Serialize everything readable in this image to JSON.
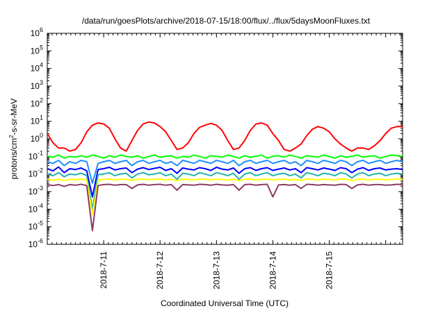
{
  "chart_data": {
    "type": "line",
    "title": "/data/run/goesPlots/archive/2018-07-15/18:00/flux/../flux/5daysMoonFluxes.txt",
    "xlabel": "Coordinated Universal Time (UTC)",
    "ylabel": {
      "prefix": "protons/cm",
      "superscript": "2",
      "suffix": "-s-sr-MeV"
    },
    "yscale": "log",
    "ylim": [
      1e-06,
      1000000.0
    ],
    "y_ticks": [
      {
        "base": "10",
        "exp": "-6",
        "value": -6
      },
      {
        "base": "10",
        "exp": "-5",
        "value": -5
      },
      {
        "base": "10",
        "exp": "-4",
        "value": -4
      },
      {
        "base": "10",
        "exp": "-3",
        "value": -3
      },
      {
        "base": "10",
        "exp": "-2",
        "value": -2
      },
      {
        "base": "10",
        "exp": "-1",
        "value": -1
      },
      {
        "base": "10",
        "exp": "0",
        "value": 0
      },
      {
        "base": "10",
        "exp": "1",
        "value": 1
      },
      {
        "base": "10",
        "exp": "2",
        "value": 2
      },
      {
        "base": "10",
        "exp": "3",
        "value": 3
      },
      {
        "base": "10",
        "exp": "4",
        "value": 4
      },
      {
        "base": "10",
        "exp": "5",
        "value": 5
      },
      {
        "base": "10",
        "exp": "6",
        "value": 6
      }
    ],
    "xlim_days": [
      0,
      6.3
    ],
    "x_ticks": [
      {
        "label": "2018-7-11",
        "day": 1
      },
      {
        "label": "2018-7-12",
        "day": 2
      },
      {
        "label": "2018-7-13",
        "day": 3
      },
      {
        "label": "2018-7-14",
        "day": 4
      },
      {
        "label": "2018-7-15",
        "day": 5
      }
    ],
    "grid": false,
    "series": [
      {
        "color": "#ff0000",
        "x": [
          0.0,
          0.1,
          0.2,
          0.3,
          0.4,
          0.5,
          0.6,
          0.7,
          0.8,
          0.9,
          1.0,
          1.1,
          1.2,
          1.3,
          1.4,
          1.5,
          1.6,
          1.7,
          1.8,
          1.9,
          2.0,
          2.1,
          2.2,
          2.3,
          2.4,
          2.5,
          2.6,
          2.7,
          2.8,
          2.9,
          3.0,
          3.1,
          3.2,
          3.3,
          3.4,
          3.5,
          3.6,
          3.7,
          3.8,
          3.9,
          4.0,
          4.1,
          4.2,
          4.3,
          4.4,
          4.5,
          4.6,
          4.7,
          4.8,
          4.9,
          5.0,
          5.1,
          5.2,
          5.3,
          5.4,
          5.5,
          5.6,
          5.7,
          5.8,
          5.9,
          6.0,
          6.1,
          6.2,
          6.3
        ],
        "y": [
          2.0,
          0.6,
          0.3,
          0.3,
          0.2,
          0.25,
          0.6,
          2.5,
          6.0,
          8.0,
          7.0,
          4.0,
          1.0,
          0.3,
          0.2,
          0.8,
          3.0,
          7.0,
          9.0,
          8.0,
          5.0,
          2.5,
          0.8,
          0.25,
          0.3,
          0.6,
          2.0,
          4.5,
          6.0,
          7.5,
          6.0,
          3.0,
          0.8,
          0.25,
          0.3,
          0.8,
          3.0,
          7.0,
          8.0,
          6.0,
          2.0,
          0.8,
          0.25,
          0.2,
          0.3,
          0.5,
          1.5,
          3.5,
          5.0,
          4.0,
          2.5,
          1.0,
          0.5,
          0.3,
          0.2,
          0.3,
          0.3,
          0.25,
          0.4,
          0.8,
          2.0,
          4.0,
          5.0,
          5.0
        ]
      },
      {
        "color": "#00ff00",
        "x": [
          0.0,
          0.1,
          0.2,
          0.3,
          0.4,
          0.5,
          0.6,
          0.7,
          0.8,
          0.9,
          1.0,
          1.1,
          1.2,
          1.3,
          1.4,
          1.5,
          1.6,
          1.7,
          1.8,
          1.9,
          2.0,
          2.1,
          2.2,
          2.3,
          2.4,
          2.5,
          2.6,
          2.7,
          2.8,
          2.9,
          3.0,
          3.1,
          3.2,
          3.3,
          3.4,
          3.5,
          3.6,
          3.7,
          3.8,
          3.9,
          4.0,
          4.1,
          4.2,
          4.3,
          4.4,
          4.5,
          4.6,
          4.7,
          4.8,
          4.9,
          5.0,
          5.1,
          5.2,
          5.3,
          5.4,
          5.5,
          5.6,
          5.7,
          5.8,
          5.9,
          6.0,
          6.1,
          6.2,
          6.3
        ],
        "y": [
          0.1,
          0.09,
          0.12,
          0.08,
          0.1,
          0.09,
          0.11,
          0.09,
          0.12,
          0.1,
          0.08,
          0.11,
          0.09,
          0.12,
          0.1,
          0.09,
          0.11,
          0.08,
          0.1,
          0.12,
          0.09,
          0.1,
          0.11,
          0.08,
          0.1,
          0.09,
          0.12,
          0.1,
          0.08,
          0.11,
          0.1,
          0.09,
          0.12,
          0.1,
          0.08,
          0.11,
          0.09,
          0.1,
          0.12,
          0.08,
          0.1,
          0.11,
          0.09,
          0.12,
          0.1,
          0.08,
          0.11,
          0.1,
          0.09,
          0.12,
          0.1,
          0.08,
          0.11,
          0.09,
          0.1,
          0.12,
          0.09,
          0.1,
          0.11,
          0.08,
          0.1,
          0.12,
          0.11,
          0.1
        ]
      },
      {
        "color": "#1e90ff",
        "x": [
          0.0,
          0.1,
          0.2,
          0.3,
          0.4,
          0.5,
          0.6,
          0.7,
          0.8,
          0.9,
          1.0,
          1.1,
          1.2,
          1.3,
          1.4,
          1.5,
          1.6,
          1.7,
          1.8,
          1.9,
          2.0,
          2.1,
          2.2,
          2.3,
          2.4,
          2.5,
          2.6,
          2.7,
          2.8,
          2.9,
          3.0,
          3.1,
          3.2,
          3.3,
          3.4,
          3.5,
          3.6,
          3.7,
          3.8,
          3.9,
          4.0,
          4.1,
          4.2,
          4.3,
          4.4,
          4.5,
          4.6,
          4.7,
          4.8,
          4.9,
          5.0,
          5.1,
          5.2,
          5.3,
          5.4,
          5.5,
          5.6,
          5.7,
          5.8,
          5.9,
          6.0,
          6.1,
          6.2,
          6.3
        ],
        "y": [
          0.05,
          0.04,
          0.06,
          0.03,
          0.05,
          0.04,
          0.06,
          0.05,
          0.003,
          0.04,
          0.05,
          0.06,
          0.04,
          0.05,
          0.06,
          0.03,
          0.05,
          0.06,
          0.04,
          0.05,
          0.06,
          0.04,
          0.05,
          0.03,
          0.06,
          0.05,
          0.04,
          0.06,
          0.05,
          0.04,
          0.06,
          0.05,
          0.04,
          0.06,
          0.03,
          0.05,
          0.06,
          0.04,
          0.05,
          0.06,
          0.04,
          0.05,
          0.06,
          0.04,
          0.05,
          0.03,
          0.06,
          0.05,
          0.04,
          0.06,
          0.05,
          0.04,
          0.06,
          0.05,
          0.03,
          0.05,
          0.06,
          0.04,
          0.05,
          0.06,
          0.04,
          0.05,
          0.06,
          0.05
        ]
      },
      {
        "color": "#0000ff",
        "x": [
          0.0,
          0.1,
          0.2,
          0.3,
          0.4,
          0.5,
          0.6,
          0.7,
          0.8,
          0.9,
          1.0,
          1.1,
          1.2,
          1.3,
          1.4,
          1.5,
          1.6,
          1.7,
          1.8,
          1.9,
          2.0,
          2.1,
          2.2,
          2.3,
          2.4,
          2.5,
          2.6,
          2.7,
          2.8,
          2.9,
          3.0,
          3.1,
          3.2,
          3.3,
          3.4,
          3.5,
          3.6,
          3.7,
          3.8,
          3.9,
          4.0,
          4.1,
          4.2,
          4.3,
          4.4,
          4.5,
          4.6,
          4.7,
          4.8,
          4.9,
          5.0,
          5.1,
          5.2,
          5.3,
          5.4,
          5.5,
          5.6,
          5.7,
          5.8,
          5.9,
          6.0,
          6.1,
          6.2,
          6.3
        ],
        "y": [
          0.02,
          0.015,
          0.025,
          0.012,
          0.02,
          0.018,
          0.022,
          0.015,
          0.0005,
          0.018,
          0.02,
          0.024,
          0.017,
          0.02,
          0.022,
          0.012,
          0.019,
          0.023,
          0.018,
          0.021,
          0.024,
          0.016,
          0.02,
          0.011,
          0.022,
          0.019,
          0.017,
          0.023,
          0.02,
          0.016,
          0.024,
          0.019,
          0.017,
          0.022,
          0.011,
          0.02,
          0.023,
          0.016,
          0.02,
          0.023,
          0.016,
          0.019,
          0.022,
          0.017,
          0.02,
          0.012,
          0.023,
          0.02,
          0.017,
          0.022,
          0.019,
          0.016,
          0.023,
          0.02,
          0.012,
          0.019,
          0.023,
          0.016,
          0.02,
          0.022,
          0.017,
          0.019,
          0.02,
          0.018
        ]
      },
      {
        "color": "#20b2aa",
        "x": [
          0.0,
          0.1,
          0.2,
          0.3,
          0.4,
          0.5,
          0.6,
          0.7,
          0.8,
          0.9,
          1.0,
          1.1,
          1.2,
          1.3,
          1.4,
          1.5,
          1.6,
          1.7,
          1.8,
          1.9,
          2.0,
          2.1,
          2.2,
          2.3,
          2.4,
          2.5,
          2.6,
          2.7,
          2.8,
          2.9,
          3.0,
          3.1,
          3.2,
          3.3,
          3.4,
          3.5,
          3.6,
          3.7,
          3.8,
          3.9,
          4.0,
          4.1,
          4.2,
          4.3,
          4.4,
          4.5,
          4.6,
          4.7,
          4.8,
          4.9,
          5.0,
          5.1,
          5.2,
          5.3,
          5.4,
          5.5,
          5.6,
          5.7,
          5.8,
          5.9,
          6.0,
          6.1,
          6.2,
          6.3
        ],
        "y": [
          0.01,
          0.008,
          0.012,
          0.007,
          0.01,
          0.009,
          0.011,
          0.008,
          0.0001,
          0.009,
          0.01,
          0.012,
          0.008,
          0.01,
          0.011,
          0.006,
          0.01,
          0.012,
          0.009,
          0.01,
          0.012,
          0.008,
          0.01,
          0.005,
          0.011,
          0.01,
          0.008,
          0.012,
          0.01,
          0.008,
          0.012,
          0.01,
          0.008,
          0.011,
          0.005,
          0.01,
          0.012,
          0.008,
          0.01,
          0.012,
          0.008,
          0.01,
          0.011,
          0.008,
          0.01,
          0.006,
          0.012,
          0.01,
          0.008,
          0.011,
          0.01,
          0.008,
          0.012,
          0.01,
          0.006,
          0.01,
          0.012,
          0.008,
          0.01,
          0.011,
          0.008,
          0.01,
          0.011,
          0.01
        ]
      },
      {
        "color": "#ffff00",
        "x": [
          0.0,
          0.1,
          0.2,
          0.3,
          0.4,
          0.5,
          0.6,
          0.7,
          0.8,
          0.9,
          1.0,
          1.1,
          1.2,
          1.3,
          1.4,
          1.5,
          1.6,
          1.7,
          1.8,
          1.9,
          2.0,
          2.1,
          2.2,
          2.3,
          2.4,
          2.5,
          2.6,
          2.7,
          2.8,
          2.9,
          3.0,
          3.1,
          3.2,
          3.3,
          3.4,
          3.5,
          3.6,
          3.7,
          3.8,
          3.9,
          4.0,
          4.1,
          4.2,
          4.3,
          4.4,
          4.5,
          4.6,
          4.7,
          4.8,
          4.9,
          5.0,
          5.1,
          5.2,
          5.3,
          5.4,
          5.5,
          5.6,
          5.7,
          5.8,
          5.9,
          6.0,
          6.1,
          6.2,
          6.3
        ],
        "y": [
          0.005,
          0.0045,
          0.005,
          0.0042,
          0.005,
          0.0047,
          0.0052,
          0.0045,
          5e-05,
          0.0045,
          0.005,
          0.0052,
          0.0046,
          0.005,
          0.0051,
          0.0043,
          0.0049,
          0.0052,
          0.0047,
          0.005,
          0.0052,
          0.0046,
          0.005,
          0.0042,
          0.0051,
          0.0049,
          0.0046,
          0.0052,
          0.005,
          0.0046,
          0.0052,
          0.0049,
          0.0046,
          0.0051,
          0.0042,
          0.005,
          0.0052,
          0.0046,
          0.005,
          0.0052,
          0.0046,
          0.0049,
          0.0051,
          0.0046,
          0.005,
          0.0043,
          0.0052,
          0.005,
          0.0046,
          0.0051,
          0.0049,
          0.0046,
          0.0052,
          0.005,
          0.0043,
          0.0049,
          0.0052,
          0.0046,
          0.005,
          0.0051,
          0.0046,
          0.0049,
          0.005,
          0.005
        ]
      },
      {
        "color": "#8b3a62",
        "x": [
          0.0,
          0.1,
          0.2,
          0.3,
          0.4,
          0.5,
          0.6,
          0.7,
          0.8,
          0.9,
          1.0,
          1.1,
          1.2,
          1.3,
          1.4,
          1.5,
          1.6,
          1.7,
          1.8,
          1.9,
          2.0,
          2.1,
          2.2,
          2.3,
          2.4,
          2.5,
          2.6,
          2.7,
          2.8,
          2.9,
          3.0,
          3.1,
          3.2,
          3.3,
          3.4,
          3.5,
          3.6,
          3.7,
          3.8,
          3.9,
          4.0,
          4.1,
          4.2,
          4.3,
          4.4,
          4.5,
          4.6,
          4.7,
          4.8,
          4.9,
          5.0,
          5.1,
          5.2,
          5.3,
          5.4,
          5.5,
          5.6,
          5.7,
          5.8,
          5.9,
          6.0,
          6.1,
          6.2,
          6.3
        ],
        "y": [
          0.0025,
          0.0022,
          0.0025,
          0.002,
          0.0025,
          0.0023,
          0.0026,
          0.0022,
          6e-06,
          0.0022,
          0.0025,
          0.0026,
          0.0023,
          0.0025,
          0.0025,
          0.0015,
          0.0024,
          0.0026,
          0.0023,
          0.0025,
          0.0026,
          0.0023,
          0.0025,
          0.0012,
          0.0025,
          0.0024,
          0.0023,
          0.0026,
          0.0025,
          0.0023,
          0.0026,
          0.0024,
          0.0023,
          0.0025,
          0.0012,
          0.0025,
          0.0026,
          0.0023,
          0.0025,
          0.0026,
          0.0005,
          0.0024,
          0.0025,
          0.0023,
          0.0025,
          0.0015,
          0.0026,
          0.0025,
          0.0023,
          0.0025,
          0.0024,
          0.0023,
          0.0026,
          0.0025,
          0.0015,
          0.0024,
          0.0026,
          0.0023,
          0.0025,
          0.0025,
          0.0023,
          0.0024,
          0.0026,
          0.0025
        ]
      }
    ]
  }
}
